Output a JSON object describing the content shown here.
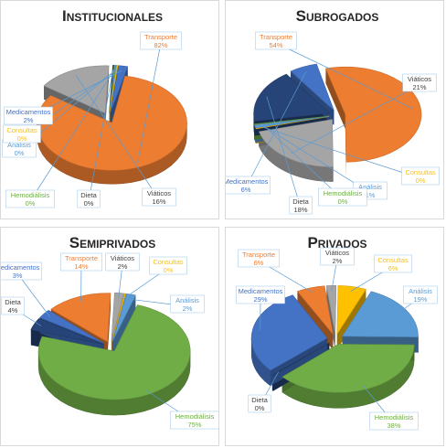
{
  "chart_data": [
    {
      "type": "pie",
      "title": "Institucionales",
      "categories": [
        "Transporte",
        "Viáticos",
        "Dieta",
        "Hemodiálisis",
        "Análisis",
        "Consultas",
        "Medicamentos"
      ],
      "values": [
        82,
        16,
        0,
        0,
        0,
        0,
        2
      ],
      "value_labels": [
        "82%",
        "16%",
        "0%",
        "0%",
        "0%",
        "0%",
        "2%"
      ]
    },
    {
      "type": "pie",
      "title": "Subrogados",
      "categories": [
        "Transporte",
        "Viáticos",
        "Consultas",
        "Análisis",
        "Hemodiálisis",
        "Dieta",
        "Medicamentos"
      ],
      "values": [
        54,
        21,
        0,
        1,
        0,
        18,
        6
      ],
      "value_labels": [
        "54%",
        "21%",
        "0%",
        "1%",
        "0%",
        "18%",
        "6%"
      ]
    },
    {
      "type": "pie",
      "title": "Semiprivados",
      "categories": [
        "Transporte",
        "Viáticos",
        "Consultas",
        "Análisis",
        "Hemodiálisis",
        "Dieta",
        "Medicamentos"
      ],
      "values": [
        14,
        2,
        0,
        2,
        75,
        4,
        3
      ],
      "value_labels": [
        "14%",
        "2%",
        "0%",
        "2%",
        "75%",
        "4%",
        "3%"
      ]
    },
    {
      "type": "pie",
      "title": "Privados",
      "categories": [
        "Transporte",
        "Viáticos",
        "Consultas",
        "Análisis",
        "Hemodiálisis",
        "Dieta",
        "Medicamentos"
      ],
      "values": [
        6,
        2,
        6,
        19,
        38,
        0,
        29
      ],
      "value_labels": [
        "6%",
        "2%",
        "6%",
        "19%",
        "38%",
        "0%",
        "29%"
      ]
    }
  ],
  "colors": {
    "Transporte": "#ED7D31",
    "Viáticos": "#A5A5A5",
    "Consultas": "#FFC000",
    "Análisis": "#5B9BD5",
    "Hemodiálisis": "#70AD47",
    "Dieta": "#264478",
    "Medicamentos": "#4472C4"
  }
}
